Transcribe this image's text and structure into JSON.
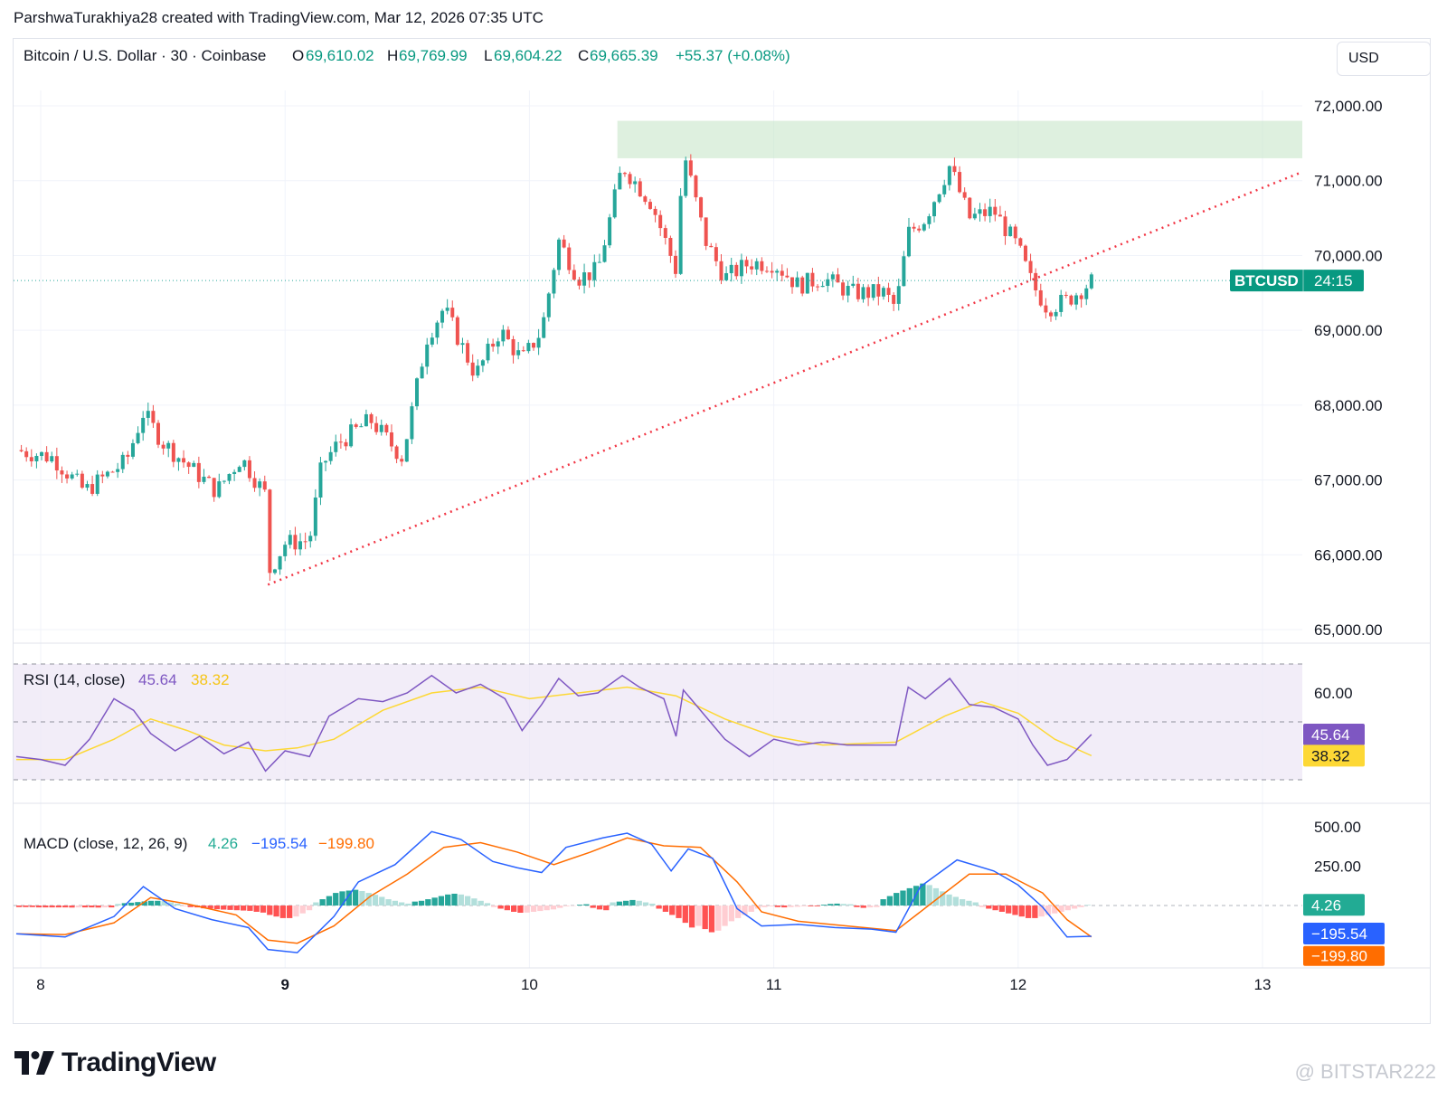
{
  "header": {
    "caption": "ParshwaTurakhiya28 created with TradingView.com, Mar 12, 2026 07:35 UTC"
  },
  "legend": {
    "symbol": "Bitcoin / U.S. Dollar · 30 · Coinbase",
    "o_label": "O",
    "o_value": "69,610.02",
    "h_label": "H",
    "h_value": "69,769.99",
    "l_label": "L",
    "l_value": "69,604.22",
    "c_label": "C",
    "c_value": "69,665.39",
    "change": "+55.37 (+0.08%)"
  },
  "currency_button": "USD",
  "price_tag": {
    "symbol": "BTCUSD",
    "countdown": "24:15"
  },
  "rsi_legend": {
    "label": "RSI (14, close)",
    "rsi": "45.64",
    "ma": "38.32"
  },
  "macd_legend": {
    "label": "MACD (close, 12, 26, 9)",
    "hist": "4.26",
    "macd": "−195.54",
    "signal": "−199.80"
  },
  "brand": "TradingView",
  "watermark": "@ BITSTAR222",
  "colors": {
    "up": "#26a69a",
    "down": "#ef5350",
    "rsi": "#7e57c2",
    "rsi_ma": "#fdd835",
    "macd": "#2962ff",
    "signal": "#ff6d00",
    "zone": "#c8e6c9",
    "trendline": "#f23645"
  },
  "chart_data": [
    {
      "type": "candlestick",
      "title": "Bitcoin / U.S. Dollar · 30 · Coinbase",
      "x_ticks": [
        "8",
        "9",
        "10",
        "11",
        "12",
        "13"
      ],
      "y_ticks": [
        "72,000.00",
        "71,000.00",
        "70,000.00",
        "69,000.00",
        "68,000.00",
        "67,000.00",
        "66,000.00",
        "65,000.00"
      ],
      "ylim": [
        65000,
        72000
      ],
      "xlim_days": [
        7.9,
        13.15
      ],
      "last_price": 69665.39,
      "resistance_zone": [
        71300,
        71800
      ],
      "resistance_zone_days": [
        10.36,
        13.15
      ],
      "trendline": {
        "from": [
          8.93,
          65600
        ],
        "to": [
          13.15,
          71100
        ]
      },
      "path": [
        [
          7.9,
          67400
        ],
        [
          8.05,
          67300
        ],
        [
          8.18,
          66850
        ],
        [
          8.35,
          67250
        ],
        [
          8.42,
          67900
        ],
        [
          8.5,
          67500
        ],
        [
          8.6,
          67200
        ],
        [
          8.72,
          66850
        ],
        [
          8.82,
          67300
        ],
        [
          8.92,
          66800
        ],
        [
          8.93,
          65750
        ],
        [
          9.0,
          66150
        ],
        [
          9.1,
          66200
        ],
        [
          9.15,
          67200
        ],
        [
          9.22,
          67500
        ],
        [
          9.35,
          67800
        ],
        [
          9.48,
          67300
        ],
        [
          9.58,
          68900
        ],
        [
          9.65,
          69300
        ],
        [
          9.78,
          68400
        ],
        [
          9.88,
          69000
        ],
        [
          9.97,
          68600
        ],
        [
          10.05,
          69000
        ],
        [
          10.12,
          70200
        ],
        [
          10.2,
          69700
        ],
        [
          10.28,
          69800
        ],
        [
          10.38,
          71200
        ],
        [
          10.5,
          70700
        ],
        [
          10.6,
          69800
        ],
        [
          10.63,
          71400
        ],
        [
          10.72,
          70200
        ],
        [
          10.8,
          69700
        ],
        [
          10.9,
          69900
        ],
        [
          11.0,
          69900
        ],
        [
          11.1,
          69600
        ],
        [
          11.2,
          69700
        ],
        [
          11.32,
          69500
        ],
        [
          11.45,
          69500
        ],
        [
          11.5,
          69300
        ],
        [
          11.55,
          70300
        ],
        [
          11.62,
          70500
        ],
        [
          11.72,
          71200
        ],
        [
          11.8,
          70500
        ],
        [
          11.9,
          70600
        ],
        [
          12.0,
          70100
        ],
        [
          12.06,
          69600
        ],
        [
          12.12,
          69300
        ],
        [
          12.2,
          69400
        ],
        [
          12.3,
          69650
        ]
      ]
    },
    {
      "type": "line",
      "title": "RSI (14, close)",
      "y_ticks": [
        "60.00"
      ],
      "ylim": [
        21,
        68
      ],
      "bands": [
        30,
        50,
        70
      ],
      "series": [
        {
          "name": "RSI",
          "values": [
            [
              7.9,
              38
            ],
            [
              8.0,
              37
            ],
            [
              8.1,
              35
            ],
            [
              8.2,
              44
            ],
            [
              8.3,
              58
            ],
            [
              8.38,
              54
            ],
            [
              8.45,
              46
            ],
            [
              8.55,
              40
            ],
            [
              8.65,
              45
            ],
            [
              8.75,
              39
            ],
            [
              8.85,
              43
            ],
            [
              8.92,
              33
            ],
            [
              9.0,
              40
            ],
            [
              9.1,
              38
            ],
            [
              9.18,
              52
            ],
            [
              9.3,
              58
            ],
            [
              9.4,
              57
            ],
            [
              9.5,
              60
            ],
            [
              9.6,
              66
            ],
            [
              9.7,
              60
            ],
            [
              9.8,
              63
            ],
            [
              9.9,
              58
            ],
            [
              9.97,
              47
            ],
            [
              10.05,
              56
            ],
            [
              10.12,
              65
            ],
            [
              10.2,
              59
            ],
            [
              10.28,
              60
            ],
            [
              10.38,
              66
            ],
            [
              10.45,
              62
            ],
            [
              10.55,
              58
            ],
            [
              10.6,
              45
            ],
            [
              10.63,
              61
            ],
            [
              10.72,
              52
            ],
            [
              10.8,
              44
            ],
            [
              10.9,
              38
            ],
            [
              11.0,
              44
            ],
            [
              11.1,
              42
            ],
            [
              11.2,
              43
            ],
            [
              11.3,
              42
            ],
            [
              11.4,
              42
            ],
            [
              11.5,
              42
            ],
            [
              11.55,
              62
            ],
            [
              11.62,
              58
            ],
            [
              11.72,
              65
            ],
            [
              11.8,
              56
            ],
            [
              11.9,
              55
            ],
            [
              12.0,
              51
            ],
            [
              12.06,
              42
            ],
            [
              12.12,
              35
            ],
            [
              12.2,
              37
            ],
            [
              12.3,
              45.64
            ]
          ]
        },
        {
          "name": "RSI MA",
          "values": [
            [
              7.9,
              37
            ],
            [
              8.1,
              37
            ],
            [
              8.3,
              44
            ],
            [
              8.45,
              51
            ],
            [
              8.6,
              47
            ],
            [
              8.75,
              42
            ],
            [
              8.92,
              40
            ],
            [
              9.05,
              41
            ],
            [
              9.2,
              44
            ],
            [
              9.4,
              54
            ],
            [
              9.6,
              60
            ],
            [
              9.8,
              62
            ],
            [
              10.0,
              58
            ],
            [
              10.2,
              60
            ],
            [
              10.4,
              62
            ],
            [
              10.6,
              59
            ],
            [
              10.8,
              51
            ],
            [
              11.0,
              45
            ],
            [
              11.2,
              42
            ],
            [
              11.5,
              43
            ],
            [
              11.7,
              52
            ],
            [
              11.85,
              57
            ],
            [
              12.0,
              53
            ],
            [
              12.15,
              44
            ],
            [
              12.3,
              38.32
            ]
          ]
        }
      ]
    },
    {
      "type": "line",
      "title": "MACD (close, 12, 26, 9)",
      "y_ticks": [
        "500.00",
        "250.00"
      ],
      "ylim": [
        -330,
        560
      ],
      "series": [
        {
          "name": "MACD",
          "values": [
            [
              7.9,
              -180
            ],
            [
              8.1,
              -200
            ],
            [
              8.3,
              -70
            ],
            [
              8.42,
              120
            ],
            [
              8.55,
              -20
            ],
            [
              8.7,
              -90
            ],
            [
              8.85,
              -140
            ],
            [
              8.93,
              -280
            ],
            [
              9.05,
              -300
            ],
            [
              9.2,
              -70
            ],
            [
              9.3,
              150
            ],
            [
              9.45,
              260
            ],
            [
              9.6,
              470
            ],
            [
              9.72,
              420
            ],
            [
              9.85,
              280
            ],
            [
              9.95,
              240
            ],
            [
              10.05,
              210
            ],
            [
              10.15,
              370
            ],
            [
              10.3,
              430
            ],
            [
              10.4,
              460
            ],
            [
              10.5,
              390
            ],
            [
              10.58,
              220
            ],
            [
              10.65,
              360
            ],
            [
              10.75,
              300
            ],
            [
              10.85,
              -20
            ],
            [
              10.95,
              -130
            ],
            [
              11.1,
              -120
            ],
            [
              11.25,
              -140
            ],
            [
              11.4,
              -150
            ],
            [
              11.5,
              -170
            ],
            [
              11.6,
              120
            ],
            [
              11.75,
              290
            ],
            [
              11.9,
              220
            ],
            [
              12.0,
              130
            ],
            [
              12.1,
              -10
            ],
            [
              12.2,
              -200
            ],
            [
              12.3,
              -195.54
            ]
          ]
        },
        {
          "name": "Signal",
          "values": [
            [
              7.9,
              -180
            ],
            [
              8.1,
              -185
            ],
            [
              8.3,
              -110
            ],
            [
              8.45,
              50
            ],
            [
              8.6,
              10
            ],
            [
              8.8,
              -60
            ],
            [
              8.93,
              -220
            ],
            [
              9.05,
              -240
            ],
            [
              9.2,
              -130
            ],
            [
              9.35,
              60
            ],
            [
              9.5,
              200
            ],
            [
              9.65,
              370
            ],
            [
              9.8,
              400
            ],
            [
              9.95,
              340
            ],
            [
              10.1,
              260
            ],
            [
              10.25,
              340
            ],
            [
              10.4,
              430
            ],
            [
              10.55,
              380
            ],
            [
              10.7,
              370
            ],
            [
              10.85,
              150
            ],
            [
              10.95,
              -40
            ],
            [
              11.1,
              -100
            ],
            [
              11.3,
              -130
            ],
            [
              11.5,
              -160
            ],
            [
              11.65,
              20
            ],
            [
              11.8,
              200
            ],
            [
              11.95,
              200
            ],
            [
              12.1,
              80
            ],
            [
              12.2,
              -90
            ],
            [
              12.3,
              -199.8
            ]
          ]
        }
      ],
      "histogram": [
        -10,
        -10,
        -10,
        -12,
        -12,
        -12,
        -12,
        -12,
        -13,
        -12,
        -12,
        -12,
        -13,
        -12,
        -12,
        10,
        15,
        18,
        22,
        26,
        30,
        30,
        28,
        20,
        12,
        -5,
        -10,
        -12,
        -18,
        -20,
        -24,
        -26,
        -28,
        -30,
        -32,
        -34,
        -40,
        -45,
        -60,
        -70,
        -80,
        -80,
        -70,
        -50,
        -30,
        20,
        40,
        60,
        80,
        90,
        95,
        100,
        92,
        80,
        68,
        55,
        40,
        30,
        20,
        12,
        25,
        30,
        40,
        50,
        60,
        70,
        75,
        70,
        60,
        45,
        30,
        15,
        -10,
        -20,
        -30,
        -40,
        -46,
        -45,
        -40,
        -35,
        -30,
        -25,
        -15,
        -5,
        -2,
        5,
        8,
        -15,
        -25,
        -30,
        20,
        25,
        30,
        35,
        30,
        20,
        12,
        -20,
        -40,
        -60,
        -80,
        -110,
        -140,
        -130,
        -150,
        -170,
        -160,
        -130,
        -100,
        -80,
        -60,
        -40,
        -20,
        -10,
        -5,
        -10,
        -12,
        -10,
        -8,
        -5,
        -5,
        -5,
        5,
        10,
        12,
        10,
        8,
        -10,
        -15,
        -12,
        -10,
        40,
        60,
        80,
        95,
        110,
        125,
        140,
        130,
        110,
        90,
        70,
        55,
        40,
        30,
        20,
        -10,
        -20,
        -30,
        -40,
        -50,
        -60,
        -70,
        -80,
        -80,
        -70,
        -60,
        -50,
        -40,
        -30,
        -20,
        -10,
        4
      ]
    }
  ]
}
